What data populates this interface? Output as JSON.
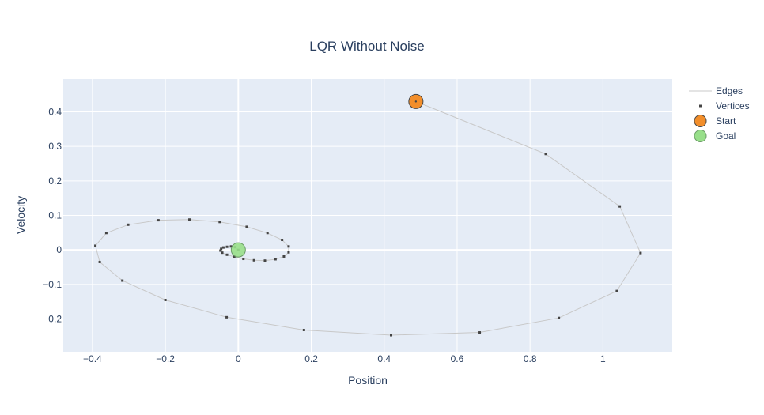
{
  "chart_data": {
    "type": "scatter",
    "title": "LQR Without Noise",
    "xlabel": "Position",
    "ylabel": "Velocity",
    "xlim": [
      -0.48,
      1.19
    ],
    "ylim": [
      -0.295,
      0.495
    ],
    "x_ticks": [
      -0.4,
      -0.2,
      0,
      0.2,
      0.4,
      0.6,
      0.8,
      1
    ],
    "x_tick_labels": [
      "−0.4",
      "−0.2",
      "0",
      "0.2",
      "0.4",
      "0.6",
      "0.8",
      "1"
    ],
    "y_ticks": [
      -0.2,
      -0.1,
      0,
      0.1,
      0.2,
      0.3,
      0.4
    ],
    "y_tick_labels": [
      "−0.2",
      "−0.1",
      "0",
      "0.1",
      "0.2",
      "0.3",
      "0.4"
    ],
    "grid": true,
    "legend_position": "top-right outside plot",
    "colors": {
      "plot_background": "#e5ecf6",
      "edges": "#c8c8c8",
      "vertices": "#444444",
      "start": "#f28e2b",
      "goal": "#98df8a"
    },
    "series": [
      {
        "name": "Edges",
        "mode": "lines",
        "x": [
          0.487,
          0.843,
          1.046,
          1.103,
          1.038,
          0.879,
          0.662,
          0.419,
          0.18,
          -0.032,
          -0.2,
          -0.318,
          -0.38,
          -0.392,
          -0.362,
          -0.302,
          -0.219,
          -0.134,
          -0.051,
          0.023,
          0.08,
          0.12,
          0.138,
          0.138,
          0.125,
          0.102,
          0.073,
          0.043,
          0.014,
          -0.011,
          -0.031,
          -0.044,
          -0.049,
          -0.047,
          -0.041,
          -0.031,
          -0.02,
          -0.009,
          0.0
        ],
        "y": [
          0.43,
          0.278,
          0.126,
          -0.009,
          -0.119,
          -0.197,
          -0.239,
          -0.247,
          -0.232,
          -0.195,
          -0.145,
          -0.089,
          -0.035,
          0.012,
          0.049,
          0.073,
          0.086,
          0.088,
          0.081,
          0.067,
          0.049,
          0.029,
          0.01,
          -0.007,
          -0.019,
          -0.027,
          -0.031,
          -0.03,
          -0.026,
          -0.02,
          -0.014,
          -0.008,
          -0.002,
          0.003,
          0.007,
          0.009,
          0.01,
          0.008,
          0.0
        ]
      },
      {
        "name": "Vertices",
        "mode": "markers",
        "x": [
          0.487,
          0.843,
          1.046,
          1.103,
          1.038,
          0.879,
          0.662,
          0.419,
          0.18,
          -0.032,
          -0.2,
          -0.318,
          -0.38,
          -0.392,
          -0.362,
          -0.302,
          -0.219,
          -0.134,
          -0.051,
          0.023,
          0.08,
          0.12,
          0.138,
          0.138,
          0.125,
          0.102,
          0.073,
          0.043,
          0.014,
          -0.011,
          -0.031,
          -0.044,
          -0.049,
          -0.047,
          -0.041,
          -0.031,
          -0.02,
          -0.009,
          0.0
        ],
        "y": [
          0.43,
          0.278,
          0.126,
          -0.009,
          -0.119,
          -0.197,
          -0.239,
          -0.247,
          -0.232,
          -0.195,
          -0.145,
          -0.089,
          -0.035,
          0.012,
          0.049,
          0.073,
          0.086,
          0.088,
          0.081,
          0.067,
          0.049,
          0.029,
          0.01,
          -0.007,
          -0.019,
          -0.027,
          -0.031,
          -0.03,
          -0.026,
          -0.02,
          -0.014,
          -0.008,
          -0.002,
          0.003,
          0.007,
          0.009,
          0.01,
          0.008,
          0.0
        ]
      },
      {
        "name": "Start",
        "mode": "markers",
        "x": [
          0.487
        ],
        "y": [
          0.43
        ]
      },
      {
        "name": "Goal",
        "mode": "markers",
        "x": [
          0.0
        ],
        "y": [
          0.0
        ]
      }
    ]
  }
}
